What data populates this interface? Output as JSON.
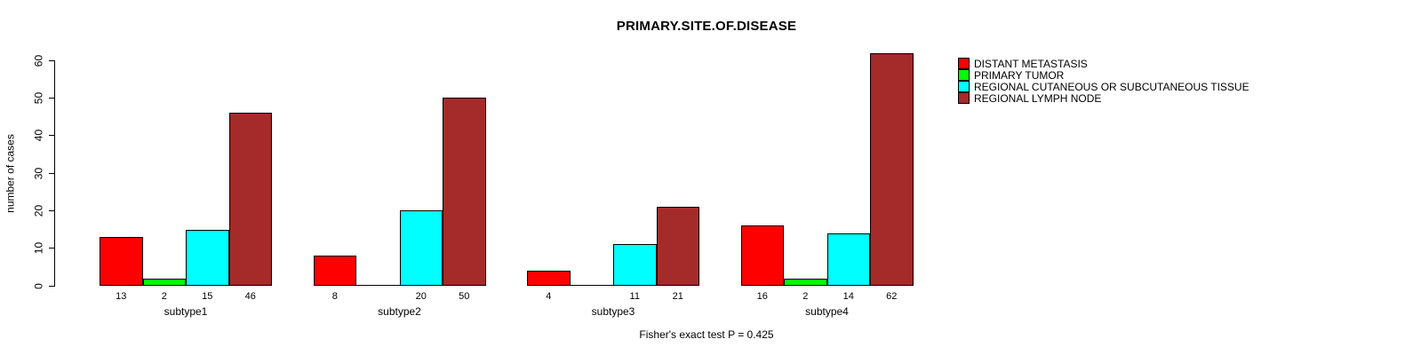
{
  "chart_data": {
    "type": "bar",
    "title": "PRIMARY.SITE.OF.DISEASE",
    "xlabel": "",
    "ylabel": "number of cases",
    "ylim": [
      0,
      60
    ],
    "yticks": [
      0,
      10,
      20,
      30,
      40,
      50,
      60
    ],
    "grid": false,
    "legend_position": "top-right",
    "bar_borders": "#000000",
    "value_labels_note": "counts printed under each bar; zero-value bars have no label",
    "categories": [
      "subtype1",
      "subtype2",
      "subtype3",
      "subtype4"
    ],
    "series": [
      {
        "name": "DISTANT METASTASIS",
        "color": "#FF0000",
        "values": [
          13,
          8,
          4,
          16
        ]
      },
      {
        "name": "PRIMARY TUMOR",
        "color": "#00FF00",
        "values": [
          2,
          0,
          0,
          2
        ]
      },
      {
        "name": "REGIONAL CUTANEOUS OR SUBCUTANEOUS TISSUE",
        "color": "#00FFFF",
        "values": [
          15,
          20,
          11,
          14
        ]
      },
      {
        "name": "REGIONAL LYMPH NODE",
        "color": "#A52A2A",
        "values": [
          46,
          50,
          21,
          62
        ]
      }
    ],
    "caption": "Fisher's exact test P = 0.425"
  }
}
